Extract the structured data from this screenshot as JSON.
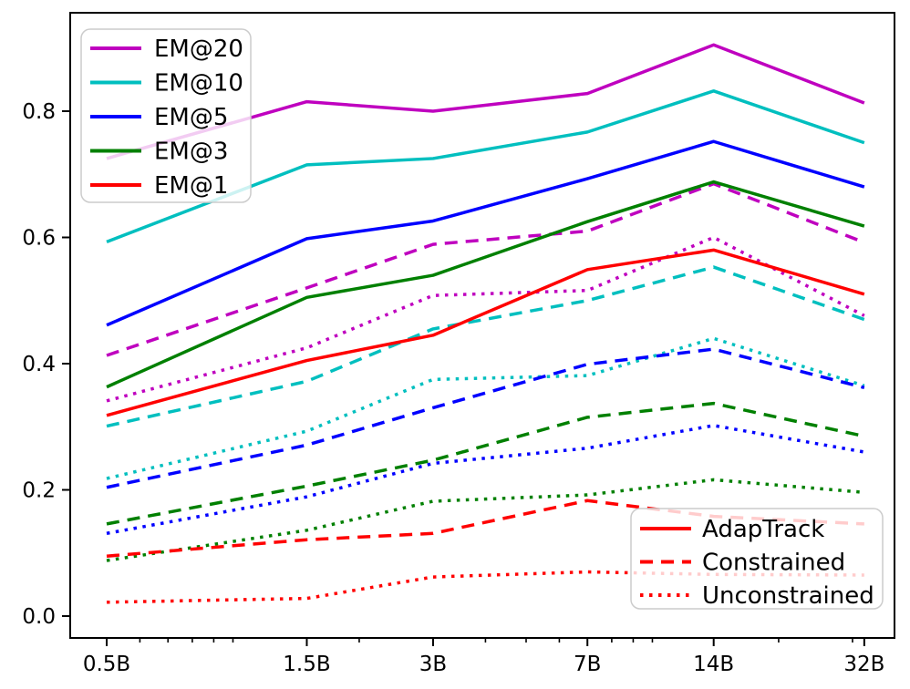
{
  "chart_data": {
    "type": "line",
    "title": "",
    "xlabel": "",
    "ylabel": "",
    "x_scale": "log",
    "categories": [
      "0.5B",
      "1.5B",
      "3B",
      "7B",
      "14B",
      "32B"
    ],
    "x_numeric": [
      0.5,
      1.5,
      3,
      7,
      14,
      32
    ],
    "yticks": {
      "labels": [
        "0.0",
        "0.2",
        "0.4",
        "0.6",
        "0.8"
      ],
      "values": [
        0.0,
        0.2,
        0.4,
        0.6,
        0.8
      ]
    },
    "x_minor_ticks": [
      0.6,
      0.7,
      0.8,
      0.9,
      1,
      2,
      4,
      5,
      6,
      8,
      9,
      10,
      20,
      30
    ],
    "ylim": [
      -0.035,
      0.956
    ],
    "grid": false,
    "colors": {
      "EM@20": "#BF00BF",
      "EM@10": "#00BFBF",
      "EM@5": "#0000FF",
      "EM@3": "#008000",
      "EM@1": "#FF0000",
      "axis": "#000000",
      "legend_border": "#cccccc"
    },
    "line_styles": {
      "AdapTrack": "solid",
      "Constrained": "dashed",
      "Unconstrained": "dotted"
    },
    "series": [
      {
        "metric": "EM@20",
        "method": "AdapTrack",
        "style": "solid",
        "color": "#BF00BF",
        "values": [
          0.725,
          0.815,
          0.8,
          0.828,
          0.905,
          0.813
        ]
      },
      {
        "metric": "EM@20",
        "method": "Constrained",
        "style": "dashed",
        "color": "#BF00BF",
        "values": [
          0.413,
          0.52,
          0.589,
          0.61,
          0.685,
          0.592
        ]
      },
      {
        "metric": "EM@20",
        "method": "Unconstrained",
        "style": "dotted",
        "color": "#BF00BF",
        "values": [
          0.341,
          0.425,
          0.508,
          0.516,
          0.6,
          0.476
        ]
      },
      {
        "metric": "EM@10",
        "method": "AdapTrack",
        "style": "solid",
        "color": "#00BFBF",
        "values": [
          0.593,
          0.715,
          0.725,
          0.767,
          0.832,
          0.75
        ]
      },
      {
        "metric": "EM@10",
        "method": "Constrained",
        "style": "dashed",
        "color": "#00BFBF",
        "values": [
          0.301,
          0.372,
          0.455,
          0.5,
          0.553,
          0.47
        ]
      },
      {
        "metric": "EM@10",
        "method": "Unconstrained",
        "style": "dotted",
        "color": "#00BFBF",
        "values": [
          0.218,
          0.293,
          0.375,
          0.381,
          0.44,
          0.365
        ]
      },
      {
        "metric": "EM@5",
        "method": "AdapTrack",
        "style": "solid",
        "color": "#0000FF",
        "values": [
          0.461,
          0.598,
          0.626,
          0.693,
          0.752,
          0.68
        ]
      },
      {
        "metric": "EM@5",
        "method": "Constrained",
        "style": "dashed",
        "color": "#0000FF",
        "values": [
          0.204,
          0.271,
          0.33,
          0.399,
          0.423,
          0.362
        ]
      },
      {
        "metric": "EM@5",
        "method": "Unconstrained",
        "style": "dotted",
        "color": "#0000FF",
        "values": [
          0.131,
          0.189,
          0.242,
          0.266,
          0.302,
          0.26
        ]
      },
      {
        "metric": "EM@3",
        "method": "AdapTrack",
        "style": "solid",
        "color": "#008000",
        "values": [
          0.363,
          0.505,
          0.54,
          0.625,
          0.688,
          0.618
        ]
      },
      {
        "metric": "EM@3",
        "method": "Constrained",
        "style": "dashed",
        "color": "#008000",
        "values": [
          0.146,
          0.206,
          0.247,
          0.315,
          0.337,
          0.285
        ]
      },
      {
        "metric": "EM@3",
        "method": "Unconstrained",
        "style": "dotted",
        "color": "#008000",
        "values": [
          0.088,
          0.136,
          0.182,
          0.192,
          0.216,
          0.196
        ]
      },
      {
        "metric": "EM@1",
        "method": "AdapTrack",
        "style": "solid",
        "color": "#FF0000",
        "values": [
          0.318,
          0.405,
          0.445,
          0.549,
          0.58,
          0.51
        ]
      },
      {
        "metric": "EM@1",
        "method": "Constrained",
        "style": "dashed",
        "color": "#FF0000",
        "values": [
          0.095,
          0.121,
          0.131,
          0.183,
          0.158,
          0.146
        ]
      },
      {
        "metric": "EM@1",
        "method": "Unconstrained",
        "style": "dotted",
        "color": "#FF0000",
        "values": [
          0.022,
          0.028,
          0.062,
          0.07,
          0.066,
          0.065
        ]
      }
    ],
    "legend_metrics": {
      "position": "upper-left",
      "entries": [
        {
          "label": "EM@20",
          "color": "#BF00BF"
        },
        {
          "label": "EM@10",
          "color": "#00BFBF"
        },
        {
          "label": "EM@5",
          "color": "#0000FF"
        },
        {
          "label": "EM@3",
          "color": "#008000"
        },
        {
          "label": "EM@1",
          "color": "#FF0000"
        }
      ]
    },
    "legend_methods": {
      "position": "lower-right",
      "color": "#FF0000",
      "entries": [
        {
          "label": "AdapTrack",
          "style": "solid"
        },
        {
          "label": "Constrained",
          "style": "dashed"
        },
        {
          "label": "Unconstrained",
          "style": "dotted"
        }
      ]
    }
  }
}
